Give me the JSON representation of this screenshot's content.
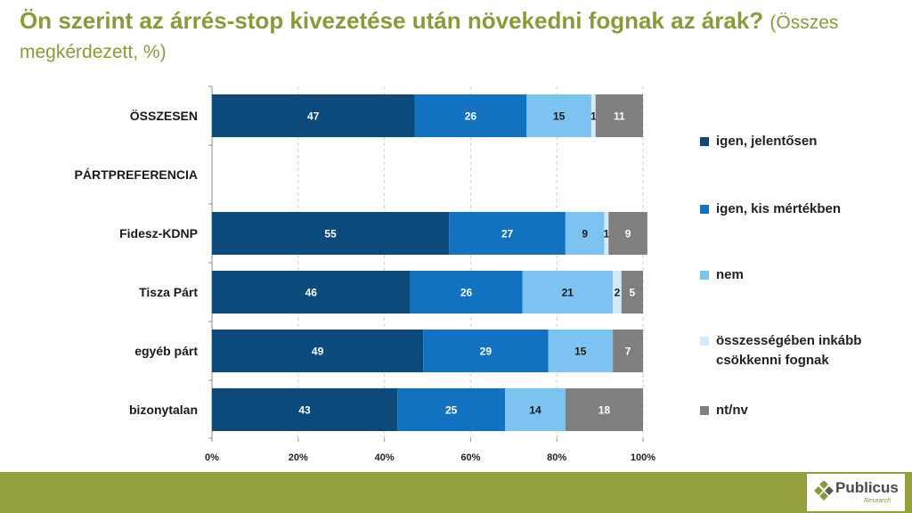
{
  "title": {
    "main": "Ön szerint az árrés-stop kivezetése után növekedni fognak az árak?",
    "sub": "(Összes megkérdezett, %)"
  },
  "chart_data": {
    "type": "bar",
    "orientation": "horizontal",
    "stacked": true,
    "title": "Ön szerint az árrés-stop kivezetése után növekedni fognak az árak? (Összes megkérdezett, %)",
    "categories": [
      "ÖSSZESEN",
      "PÁRTPREFERENCIA",
      "Fidesz-KDNP",
      "Tisza Párt",
      "egyéb párt",
      "bizonytalan"
    ],
    "series": [
      {
        "name": "igen, jelentősen",
        "color": "#0c4a7c",
        "values": [
          47,
          null,
          55,
          46,
          49,
          43
        ]
      },
      {
        "name": "igen, kis mértékben",
        "color": "#1372bf",
        "values": [
          26,
          null,
          27,
          26,
          29,
          25
        ]
      },
      {
        "name": "nem",
        "color": "#7cc3f2",
        "values": [
          15,
          null,
          9,
          21,
          15,
          14
        ]
      },
      {
        "name": "összességében inkább csökkenni fognak",
        "color": "#d3eafb",
        "values": [
          1,
          null,
          1,
          2,
          0,
          0
        ]
      },
      {
        "name": "nt/nv",
        "color": "#7f7f7f",
        "values": [
          11,
          null,
          9,
          5,
          7,
          18
        ]
      }
    ],
    "data_label_colors": [
      "#ffffff",
      "#ffffff",
      "#1a1a1a",
      "#1a1a1a",
      "#ffffff"
    ],
    "x_ticks": [
      "0%",
      "20%",
      "40%",
      "60%",
      "80%",
      "100%"
    ],
    "xlim": [
      0,
      100
    ],
    "xlabel": "",
    "ylabel": "",
    "grid": true,
    "legend": "right"
  },
  "brand": {
    "name": "Publicus",
    "tagline": "Research",
    "title_color": "#8a9a3a",
    "footer_color": "#95a03c"
  }
}
